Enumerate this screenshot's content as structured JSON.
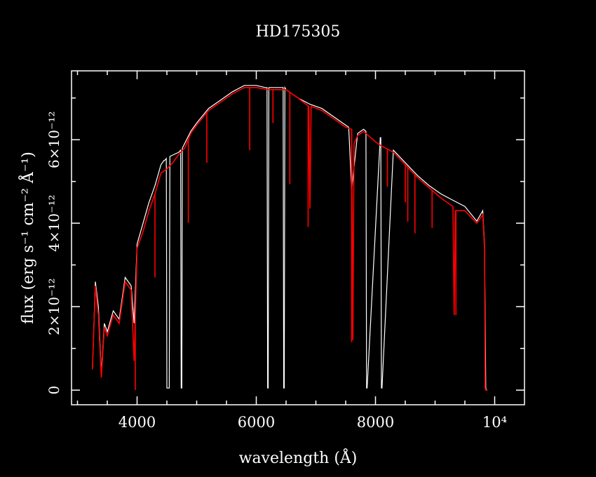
{
  "chart_data": {
    "type": "line",
    "title": "HD175305",
    "xlabel": "wavelength (Å)",
    "ylabel": "flux (erg s⁻¹ cm⁻² Å⁻¹)",
    "xlim": [
      2900,
      10500
    ],
    "ylim": [
      -3.5e-13,
      7.65e-12
    ],
    "x_ticks": [
      {
        "value": 4000,
        "label": "4000"
      },
      {
        "value": 6000,
        "label": "6000"
      },
      {
        "value": 8000,
        "label": "8000"
      },
      {
        "value": 10000,
        "label": "10⁴"
      }
    ],
    "y_ticks": [
      {
        "value": 0,
        "label": "0"
      },
      {
        "value": 2e-12,
        "label": "2×10⁻¹²"
      },
      {
        "value": 4e-12,
        "label": "4×10⁻¹²"
      },
      {
        "value": 6e-12,
        "label": "6×10⁻¹²"
      }
    ],
    "series": [
      {
        "color": "#ffffff",
        "x": [
          3250,
          3300,
          3350,
          3400,
          3450,
          3500,
          3600,
          3700,
          3800,
          3900,
          3950,
          4000,
          4100,
          4200,
          4300,
          4400,
          4450,
          4460,
          4490,
          4500,
          4510,
          4540,
          4550,
          4700,
          4730,
          4740,
          4750,
          4760,
          4900,
          5000,
          5200,
          5400,
          5600,
          5800,
          6000,
          6150,
          6180,
          6190,
          6200,
          6210,
          6400,
          6450,
          6460,
          6470,
          6480,
          6500,
          6700,
          6900,
          7100,
          7300,
          7500,
          7550,
          7600,
          7700,
          7800,
          7840,
          7850,
          7860,
          8080,
          8090,
          8100,
          8110,
          8300,
          8500,
          8700,
          8900,
          9100,
          9300,
          9500,
          9700,
          9800,
          9830,
          9850,
          9860,
          9880
        ],
        "y": [
          0.5,
          2.6,
          2.0,
          0.4,
          1.6,
          1.4,
          1.9,
          1.7,
          2.7,
          2.5,
          1.6,
          3.5,
          4.0,
          4.5,
          4.9,
          5.4,
          5.5,
          5.5,
          5.55,
          0.05,
          0.05,
          0.05,
          5.6,
          5.7,
          5.75,
          0.05,
          0.05,
          5.8,
          6.2,
          6.4,
          6.75,
          6.95,
          7.15,
          7.3,
          7.3,
          7.25,
          7.25,
          0.05,
          0.05,
          7.25,
          7.25,
          7.25,
          0.05,
          0.05,
          7.25,
          7.2,
          7.0,
          6.85,
          6.75,
          6.55,
          6.35,
          6.3,
          4.8,
          6.15,
          6.25,
          6.2,
          0.05,
          0.05,
          6.05,
          6.05,
          0.05,
          0.05,
          5.75,
          5.45,
          5.15,
          4.9,
          4.7,
          4.55,
          4.4,
          4.05,
          4.3,
          3.5,
          0.05,
          0.0,
          0.0
        ]
      },
      {
        "color": "#ff0000",
        "x": [
          3250,
          3300,
          3350,
          3400,
          3450,
          3500,
          3600,
          3700,
          3800,
          3900,
          3950,
          4000,
          4100,
          4200,
          4300,
          4400,
          4500,
          4600,
          4700,
          4800,
          4900,
          5000,
          5200,
          5400,
          5600,
          5800,
          6000,
          6200,
          6400,
          6500,
          6700,
          6880,
          6900,
          6920,
          7100,
          7300,
          7500,
          7600,
          7620,
          7640,
          7700,
          7800,
          8000,
          8100,
          8300,
          8500,
          8700,
          8900,
          9100,
          9300,
          9320,
          9340,
          9500,
          9700,
          9800,
          9830,
          9840,
          9850,
          9860,
          9880
        ],
        "y": [
          0.5,
          2.5,
          1.8,
          0.3,
          1.5,
          1.3,
          1.8,
          1.6,
          2.6,
          2.4,
          0.7,
          3.4,
          3.8,
          4.3,
          4.7,
          5.2,
          5.3,
          5.45,
          5.65,
          5.8,
          6.15,
          6.35,
          6.7,
          6.9,
          7.1,
          7.25,
          7.25,
          7.2,
          7.2,
          7.2,
          7.0,
          6.8,
          4.35,
          6.8,
          6.7,
          6.5,
          6.3,
          6.25,
          1.2,
          5.9,
          6.1,
          6.2,
          5.95,
          5.85,
          5.7,
          5.4,
          5.1,
          4.85,
          4.6,
          4.4,
          1.8,
          4.3,
          4.3,
          4.0,
          4.2,
          3.4,
          0.05,
          0.0,
          0.0,
          0.0
        ]
      }
    ],
    "absorption_lines": {
      "color": "#ff0000",
      "lines": [
        {
          "x": 3970,
          "depth": 3.0
        },
        {
          "x": 4300,
          "depth": 2.0
        },
        {
          "x": 4860,
          "depth": 2.0
        },
        {
          "x": 5170,
          "depth": 1.2
        },
        {
          "x": 5890,
          "depth": 1.5
        },
        {
          "x": 6280,
          "depth": 0.8
        },
        {
          "x": 6563,
          "depth": 2.2
        },
        {
          "x": 6870,
          "depth": 2.9
        },
        {
          "x": 7600,
          "depth": 5.1
        },
        {
          "x": 8200,
          "depth": 0.9
        },
        {
          "x": 8500,
          "depth": 0.9
        },
        {
          "x": 8542,
          "depth": 1.3
        },
        {
          "x": 8662,
          "depth": 1.4
        },
        {
          "x": 8950,
          "depth": 0.9
        },
        {
          "x": 9350,
          "depth": 2.5
        }
      ]
    },
    "grid": false,
    "legend": "none"
  }
}
